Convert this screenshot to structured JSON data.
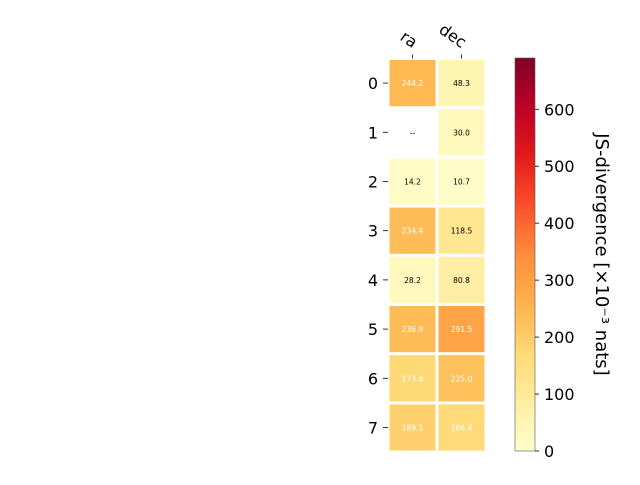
{
  "chart_data": {
    "type": "heatmap",
    "title": "",
    "columns": [
      "ra",
      "dec"
    ],
    "rows": [
      "0",
      "1",
      "2",
      "3",
      "4",
      "5",
      "6",
      "7"
    ],
    "values": [
      [
        244.2,
        48.3
      ],
      [
        null,
        30.0
      ],
      [
        14.2,
        10.7
      ],
      [
        234.4,
        118.5
      ],
      [
        28.2,
        80.8
      ],
      [
        236.9,
        291.5
      ],
      [
        173.6,
        225.0
      ],
      [
        189.1,
        166.4
      ]
    ],
    "cell_labels": [
      [
        "244.2",
        "48.3"
      ],
      [
        "--",
        "30.0"
      ],
      [
        "14.2",
        "10.7"
      ],
      [
        "234.4",
        "118.5"
      ],
      [
        "28.2",
        "80.8"
      ],
      [
        "236.9",
        "291.5"
      ],
      [
        "173.6",
        "225.0"
      ],
      [
        "189.1",
        "166.4"
      ]
    ],
    "colorbar": {
      "label": "JS-divergence [×10⁻³ nats]",
      "colormap": "YlOrRd",
      "vmin": 0,
      "vmax": 690,
      "ticks": [
        0,
        100,
        200,
        300,
        400,
        500,
        600
      ],
      "tick_labels": [
        "0",
        "100",
        "200",
        "300",
        "400",
        "500",
        "600"
      ]
    },
    "missing_cell_color": "#ffffff",
    "grid": false,
    "colors": [
      "#ffffcc",
      "#ffeda0",
      "#fed976",
      "#feb24c",
      "#fd8d3c",
      "#fc4e2a",
      "#e31a1c",
      "#bd0026",
      "#800026"
    ]
  }
}
